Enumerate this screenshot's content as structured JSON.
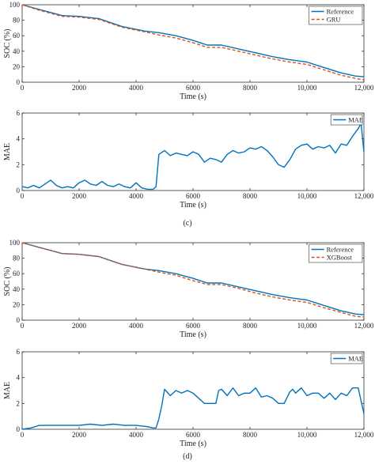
{
  "panel_labels": [
    "(c)",
    "(d)"
  ],
  "chart_data": [
    {
      "type": "line",
      "panel": "c",
      "xlabel": "Time (s)",
      "ylabel": "SOC (%)",
      "xlim": [
        0,
        12000
      ],
      "ylim": [
        0,
        100
      ],
      "xticks": [
        0,
        2000,
        4000,
        6000,
        8000,
        10000,
        12000
      ],
      "xtick_labels": [
        "0",
        "2000",
        "4000",
        "6000",
        "8000",
        "10,000",
        "12,000"
      ],
      "yticks": [
        0,
        20,
        40,
        60,
        80,
        100
      ],
      "ytick_labels": [
        "0",
        "20",
        "40",
        "60",
        "80",
        "100"
      ],
      "legend": "top-right",
      "series": [
        {
          "name": "Reference",
          "color": "#0072BD",
          "style": "solid",
          "x": [
            0,
            600,
            1400,
            2000,
            2700,
            3500,
            4300,
            4800,
            5400,
            6000,
            6500,
            7000,
            7600,
            8200,
            8800,
            9400,
            10000,
            10600,
            11200,
            11700,
            12000
          ],
          "y": [
            100,
            94,
            86,
            85,
            82,
            72,
            66,
            64,
            60,
            54,
            48,
            48,
            43,
            38,
            33,
            29,
            26,
            19,
            12,
            8,
            7
          ]
        },
        {
          "name": "GRU",
          "color": "#D95319",
          "style": "dashed",
          "x": [
            0,
            600,
            1400,
            2000,
            2700,
            3500,
            4300,
            4800,
            5400,
            6000,
            6500,
            7000,
            7600,
            8200,
            8800,
            9400,
            10000,
            10600,
            11200,
            11700,
            12000
          ],
          "y": [
            100,
            93,
            85,
            84,
            81,
            71,
            65,
            61,
            57,
            51,
            45,
            45,
            40,
            35,
            30,
            26,
            23,
            16,
            9,
            5,
            3
          ]
        }
      ]
    },
    {
      "type": "line",
      "panel": "c",
      "xlabel": "Time (s)",
      "ylabel": "MAE",
      "xlim": [
        0,
        12000
      ],
      "ylim": [
        0,
        6
      ],
      "xticks": [
        0,
        2000,
        4000,
        6000,
        8000,
        10000,
        12000
      ],
      "xtick_labels": [
        "0",
        "2000",
        "4000",
        "6000",
        "8000",
        "10,000",
        "12,000"
      ],
      "yticks": [
        0,
        2,
        4,
        6
      ],
      "ytick_labels": [
        "0",
        "2",
        "4",
        "6"
      ],
      "legend": "top-right",
      "series": [
        {
          "name": "MAE",
          "color": "#0072BD",
          "style": "solid",
          "x": [
            0,
            200,
            400,
            600,
            800,
            1000,
            1200,
            1400,
            1600,
            1800,
            2000,
            2200,
            2400,
            2600,
            2800,
            3000,
            3200,
            3400,
            3600,
            3800,
            4000,
            4200,
            4400,
            4600,
            4700,
            4800,
            5000,
            5200,
            5400,
            5600,
            5800,
            6000,
            6200,
            6400,
            6600,
            6800,
            7000,
            7200,
            7400,
            7600,
            7800,
            8000,
            8200,
            8400,
            8600,
            8800,
            9000,
            9200,
            9400,
            9600,
            9800,
            10000,
            10200,
            10400,
            10600,
            10800,
            11000,
            11200,
            11400,
            11600,
            11800,
            11900,
            12000
          ],
          "y": [
            0.3,
            0.2,
            0.4,
            0.2,
            0.5,
            0.8,
            0.4,
            0.2,
            0.3,
            0.2,
            0.6,
            0.8,
            0.5,
            0.4,
            0.7,
            0.4,
            0.3,
            0.5,
            0.3,
            0.2,
            0.6,
            0.2,
            0.1,
            0.1,
            0.3,
            2.8,
            3.1,
            2.7,
            2.9,
            2.8,
            2.7,
            3.0,
            2.8,
            2.2,
            2.5,
            2.4,
            2.2,
            2.8,
            3.1,
            2.9,
            3.0,
            3.3,
            3.2,
            3.4,
            3.1,
            2.6,
            2.0,
            1.8,
            2.4,
            3.2,
            3.5,
            3.6,
            3.2,
            3.4,
            3.3,
            3.5,
            2.9,
            3.6,
            3.5,
            4.2,
            4.8,
            5.2,
            3.0
          ]
        }
      ]
    },
    {
      "type": "line",
      "panel": "d",
      "xlabel": "Time (s)",
      "ylabel": "SOC (%)",
      "xlim": [
        0,
        12000
      ],
      "ylim": [
        0,
        100
      ],
      "xticks": [
        0,
        2000,
        4000,
        6000,
        8000,
        10000,
        12000
      ],
      "xtick_labels": [
        "0",
        "2000",
        "4000",
        "6000",
        "8000",
        "10,000",
        "12,000"
      ],
      "yticks": [
        0,
        20,
        40,
        60,
        80,
        100
      ],
      "ytick_labels": [
        "0",
        "20",
        "40",
        "60",
        "80",
        "100"
      ],
      "legend": "top-right",
      "series": [
        {
          "name": "Reference",
          "color": "#0072BD",
          "style": "solid",
          "x": [
            0,
            600,
            1400,
            2000,
            2700,
            3500,
            4300,
            4800,
            5400,
            6000,
            6500,
            7000,
            7600,
            8200,
            8800,
            9400,
            10000,
            10600,
            11200,
            11700,
            12000
          ],
          "y": [
            100,
            94,
            86,
            85,
            82,
            72,
            66,
            64,
            60,
            54,
            48,
            48,
            43,
            38,
            33,
            29,
            26,
            19,
            12,
            8,
            7
          ]
        },
        {
          "name": "XGBoost",
          "color": "#D95319",
          "style": "dashed",
          "x": [
            0,
            600,
            1400,
            2000,
            2700,
            3500,
            4300,
            4800,
            5400,
            6000,
            6500,
            7000,
            7600,
            8200,
            8800,
            9400,
            10000,
            10600,
            11200,
            11700,
            12000
          ],
          "y": [
            100,
            94,
            86,
            85,
            82,
            72,
            66,
            62,
            58,
            51,
            46,
            46,
            41,
            35,
            30,
            26,
            23,
            16,
            10,
            5,
            4
          ]
        }
      ]
    },
    {
      "type": "line",
      "panel": "d",
      "xlabel": "Time (s)",
      "ylabel": "MAE",
      "xlim": [
        0,
        12000
      ],
      "ylim": [
        0,
        6
      ],
      "xticks": [
        0,
        2000,
        4000,
        6000,
        8000,
        10000,
        12000
      ],
      "xtick_labels": [
        "0",
        "2000",
        "4000",
        "6000",
        "8000",
        "10,000",
        "12,000"
      ],
      "yticks": [
        0,
        2,
        4,
        6
      ],
      "ytick_labels": [
        "0",
        "2",
        "4",
        "6"
      ],
      "legend": "top-right",
      "series": [
        {
          "name": "MAE",
          "color": "#0072BD",
          "style": "solid",
          "x": [
            0,
            300,
            600,
            1000,
            1500,
            2000,
            2400,
            2800,
            3200,
            3600,
            4000,
            4400,
            4600,
            4700,
            4800,
            4900,
            5000,
            5200,
            5400,
            5600,
            5800,
            6000,
            6200,
            6400,
            6600,
            6800,
            6900,
            7000,
            7200,
            7400,
            7600,
            7800,
            8000,
            8200,
            8400,
            8600,
            8800,
            9000,
            9200,
            9400,
            9500,
            9600,
            9800,
            10000,
            10200,
            10400,
            10600,
            10800,
            11000,
            11200,
            11400,
            11600,
            11800,
            11900,
            12000
          ],
          "y": [
            0.0,
            0.1,
            0.3,
            0.3,
            0.3,
            0.3,
            0.4,
            0.3,
            0.4,
            0.3,
            0.3,
            0.2,
            0.1,
            0.1,
            0.8,
            1.8,
            3.1,
            2.6,
            3.0,
            2.8,
            3.0,
            2.8,
            2.4,
            2.0,
            2.0,
            2.0,
            3.0,
            3.1,
            2.6,
            3.2,
            2.6,
            2.8,
            2.8,
            3.2,
            2.5,
            2.6,
            2.4,
            2.0,
            2.0,
            2.9,
            3.1,
            2.8,
            3.2,
            2.6,
            2.8,
            2.8,
            2.4,
            2.8,
            2.3,
            2.8,
            2.6,
            3.2,
            3.2,
            2.2,
            1.2
          ]
        }
      ]
    }
  ]
}
